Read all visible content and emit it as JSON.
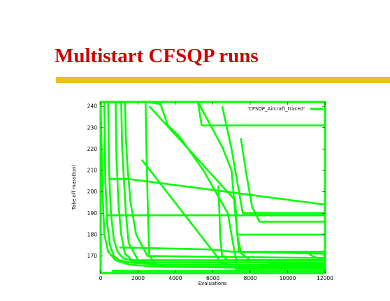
{
  "slide": {
    "title": "Multistart CFSQP runs",
    "accent_color": "#f0c020",
    "title_color": "#cc0000"
  },
  "chart_data": {
    "type": "line",
    "title": "",
    "xlabel": "Evaluations",
    "ylabel": "Take off mass(ton)",
    "xlim": [
      0,
      12000
    ],
    "ylim": [
      162,
      242
    ],
    "x_ticks": [
      0,
      2000,
      4000,
      6000,
      8000,
      10000,
      12000
    ],
    "y_ticks": [
      170,
      180,
      190,
      200,
      210,
      220,
      230,
      240
    ],
    "grid": false,
    "legend_position": "top-right",
    "line_color": "#00ff00",
    "series": [
      {
        "name": "'CFSQP_Aircraft_traced'",
        "segments": [
          {
            "x": [
              0,
              1100,
              12000
            ],
            "y": [
              242,
              242,
              242
            ]
          },
          {
            "x": [
              200,
              250,
              350,
              500,
              700,
              1000,
              1500,
              3000,
              12000
            ],
            "y": [
              242,
              205,
              185,
              175,
              170,
              168,
              167,
              166,
              166
            ]
          },
          {
            "x": [
              400,
              450,
              550,
              700,
              900,
              1200,
              2000,
              12000
            ],
            "y": [
              242,
              210,
              190,
              178,
              172,
              169,
              167,
              167
            ]
          },
          {
            "x": [
              800,
              850,
              950,
              1100,
              1300,
              1700,
              12000
            ],
            "y": [
              242,
              215,
              195,
              180,
              171,
              168,
              168
            ]
          },
          {
            "x": [
              1100,
              1150,
              1250,
              1350,
              1500,
              2000,
              3500,
              12000
            ],
            "y": [
              242,
              220,
              205,
              190,
              176,
              168,
              165,
              165
            ]
          },
          {
            "x": [
              1300,
              1350,
              1450,
              1600,
              1900,
              2500,
              12000
            ],
            "y": [
              242,
              225,
              210,
              195,
              180,
              170,
              169
            ]
          },
          {
            "x": [
              0,
              100,
              200,
              400,
              800,
              1500,
              3000,
              12000
            ],
            "y": [
              242,
              200,
              180,
              172,
              168,
              166,
              165,
              164
            ]
          },
          {
            "x": [
              500,
              1500,
              12000
            ],
            "y": [
              206,
              206,
              194
            ]
          },
          {
            "x": [
              300,
              12000
            ],
            "y": [
              189,
              189
            ]
          },
          {
            "x": [
              1000,
              6000,
              7000,
              7500,
              12000
            ],
            "y": [
              174,
              173,
              172,
              172,
              171
            ]
          },
          {
            "x": [
              2400,
              2450,
              2500,
              2600,
              3000,
              12000
            ],
            "y": [
              242,
              220,
              200,
              170,
              166,
              166
            ]
          },
          {
            "x": [
              2500,
              3200,
              3400,
              3600,
              4200,
              5500,
              6800,
              7100,
              7300,
              12000
            ],
            "y": [
              242,
              241,
              236,
              231,
              226,
              210,
              190,
              175,
              166,
              166
            ]
          },
          {
            "x": [
              2600,
              7200,
              7300,
              7500,
              12000
            ],
            "y": [
              240,
              196,
              180,
              172,
              172
            ]
          },
          {
            "x": [
              2200,
              6200,
              6400,
              6800,
              12000
            ],
            "y": [
              215,
              170,
              167,
              166,
              166
            ]
          },
          {
            "x": [
              5200,
              6500,
              7000,
              7200,
              7400,
              8000,
              12000
            ],
            "y": [
              242,
              221,
              210,
              190,
              172,
              168,
              168
            ]
          },
          {
            "x": [
              5200,
              5400,
              6000,
              12000
            ],
            "y": [
              242,
              231,
              231,
              231
            ]
          },
          {
            "x": [
              6500,
              7000,
              7300,
              7600,
              12000
            ],
            "y": [
              240,
              220,
              205,
              190,
              190
            ]
          },
          {
            "x": [
              6300,
              6350,
              6400,
              6500,
              6800,
              12000
            ],
            "y": [
              203,
              190,
              178,
              170,
              168,
              168
            ]
          },
          {
            "x": [
              7500,
              7800,
              8100,
              8500,
              12000
            ],
            "y": [
              225,
              208,
              193,
              186,
              186
            ]
          },
          {
            "x": [
              7300,
              12000
            ],
            "y": [
              180,
              180
            ]
          },
          {
            "x": [
              600,
              12000
            ],
            "y": [
              163,
              163
            ]
          },
          {
            "x": [
              7000,
              12000
            ],
            "y": [
              165,
              165
            ]
          },
          {
            "x": [
              7200,
              12000
            ],
            "y": [
              164,
              164
            ]
          },
          {
            "x": [
              7500,
              11000,
              11500,
              12000
            ],
            "y": [
              167,
              167,
              166,
              166
            ]
          },
          {
            "x": [
              8000,
              11000,
              11300,
              11600,
              12000
            ],
            "y": [
              172,
              172,
              170,
              169,
              169
            ]
          },
          {
            "x": [
              8000,
              12000
            ],
            "y": [
              164.5,
              164.5
            ]
          },
          {
            "x": [
              8500,
              12000
            ],
            "y": [
              165.5,
              165.5
            ]
          },
          {
            "x": [
              9000,
              12000
            ],
            "y": [
              166.5,
              166.5
            ]
          }
        ]
      }
    ]
  }
}
